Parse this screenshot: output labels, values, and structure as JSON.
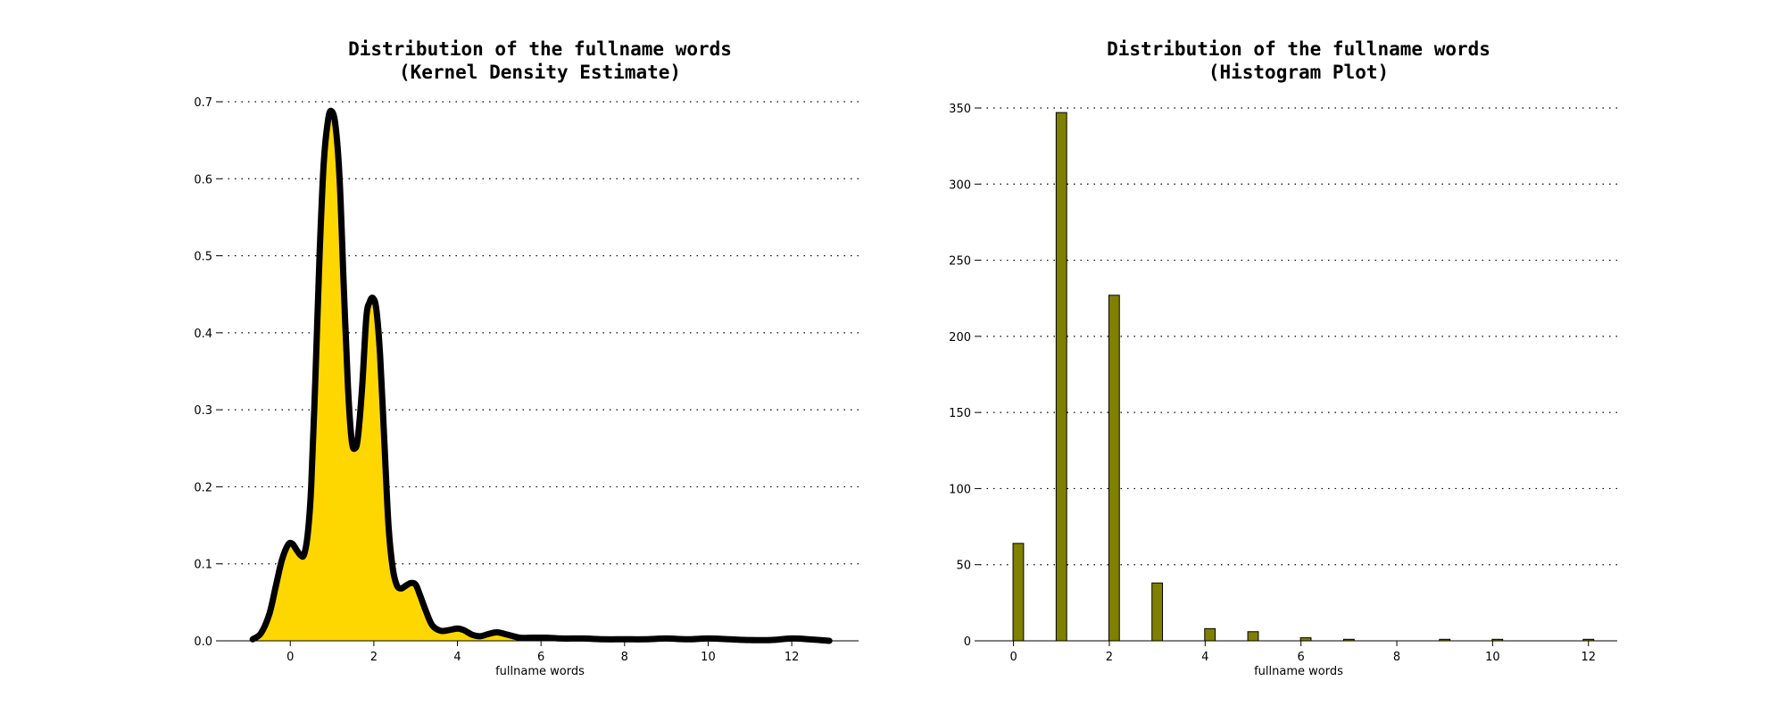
{
  "chart_data": [
    {
      "type": "area",
      "title": [
        "Distribution of the fullname words",
        "(Kernel Density Estimate)"
      ],
      "xlabel": "fullname words",
      "ylabel": "",
      "xlim": [
        -1.65,
        13.6
      ],
      "ylim": [
        0,
        0.7
      ],
      "xticks": [
        0,
        2,
        4,
        6,
        8,
        10,
        12
      ],
      "yticks": [
        0.0,
        0.1,
        0.2,
        0.3,
        0.4,
        0.5,
        0.6,
        0.7
      ],
      "ytick_labels": [
        "0.0",
        "0.1",
        "0.2",
        "0.3",
        "0.4",
        "0.5",
        "0.6",
        "0.7"
      ],
      "grid": "y",
      "fill_color": "#FFD700",
      "line_color": "#000000",
      "points": [
        [
          -0.9,
          0.002
        ],
        [
          -0.7,
          0.01
        ],
        [
          -0.5,
          0.035
        ],
        [
          -0.35,
          0.07
        ],
        [
          -0.2,
          0.105
        ],
        [
          -0.05,
          0.125
        ],
        [
          0.05,
          0.126
        ],
        [
          0.15,
          0.118
        ],
        [
          0.25,
          0.111
        ],
        [
          0.33,
          0.112
        ],
        [
          0.42,
          0.14
        ],
        [
          0.5,
          0.2
        ],
        [
          0.6,
          0.34
        ],
        [
          0.7,
          0.5
        ],
        [
          0.8,
          0.62
        ],
        [
          0.9,
          0.675
        ],
        [
          0.98,
          0.688
        ],
        [
          1.08,
          0.67
        ],
        [
          1.18,
          0.6
        ],
        [
          1.28,
          0.46
        ],
        [
          1.38,
          0.33
        ],
        [
          1.47,
          0.26
        ],
        [
          1.55,
          0.25
        ],
        [
          1.62,
          0.265
        ],
        [
          1.72,
          0.33
        ],
        [
          1.82,
          0.42
        ],
        [
          1.9,
          0.44
        ],
        [
          1.98,
          0.445
        ],
        [
          2.06,
          0.43
        ],
        [
          2.15,
          0.37
        ],
        [
          2.25,
          0.26
        ],
        [
          2.35,
          0.15
        ],
        [
          2.45,
          0.095
        ],
        [
          2.55,
          0.072
        ],
        [
          2.65,
          0.068
        ],
        [
          2.75,
          0.071
        ],
        [
          2.88,
          0.075
        ],
        [
          3.0,
          0.073
        ],
        [
          3.1,
          0.06
        ],
        [
          3.25,
          0.038
        ],
        [
          3.4,
          0.02
        ],
        [
          3.6,
          0.013
        ],
        [
          3.8,
          0.014
        ],
        [
          4.0,
          0.016
        ],
        [
          4.15,
          0.014
        ],
        [
          4.35,
          0.008
        ],
        [
          4.55,
          0.006
        ],
        [
          4.75,
          0.009
        ],
        [
          4.95,
          0.011
        ],
        [
          5.2,
          0.008
        ],
        [
          5.5,
          0.004
        ],
        [
          5.8,
          0.004
        ],
        [
          6.1,
          0.004
        ],
        [
          6.5,
          0.003
        ],
        [
          7.0,
          0.003
        ],
        [
          7.5,
          0.002
        ],
        [
          8.0,
          0.002
        ],
        [
          8.5,
          0.002
        ],
        [
          9.0,
          0.003
        ],
        [
          9.5,
          0.002
        ],
        [
          10.0,
          0.003
        ],
        [
          10.5,
          0.002
        ],
        [
          11.0,
          0.001
        ],
        [
          11.5,
          0.001
        ],
        [
          12.0,
          0.003
        ],
        [
          12.4,
          0.002
        ],
        [
          12.9,
          0.0
        ]
      ]
    },
    {
      "type": "bar",
      "title": [
        "Distribution of the fullname words",
        "(Histogram Plot)"
      ],
      "xlabel": "fullname words",
      "ylabel": "",
      "xlim": [
        -0.7,
        12.6
      ],
      "ylim": [
        0,
        350
      ],
      "xticks": [
        0,
        2,
        4,
        6,
        8,
        10,
        12
      ],
      "yticks": [
        0,
        50,
        100,
        150,
        200,
        250,
        300,
        350
      ],
      "grid": "y",
      "bar_color": "#808000",
      "edge_color": "#000000",
      "bar_width": 0.22,
      "bars": [
        {
          "x": 0.1,
          "value": 64
        },
        {
          "x": 1.0,
          "value": 347
        },
        {
          "x": 2.1,
          "value": 227
        },
        {
          "x": 3.0,
          "value": 38
        },
        {
          "x": 4.1,
          "value": 8
        },
        {
          "x": 5.0,
          "value": 6
        },
        {
          "x": 6.1,
          "value": 2
        },
        {
          "x": 7.0,
          "value": 1
        },
        {
          "x": 9.0,
          "value": 1
        },
        {
          "x": 10.1,
          "value": 1
        },
        {
          "x": 12.0,
          "value": 1
        }
      ]
    }
  ]
}
